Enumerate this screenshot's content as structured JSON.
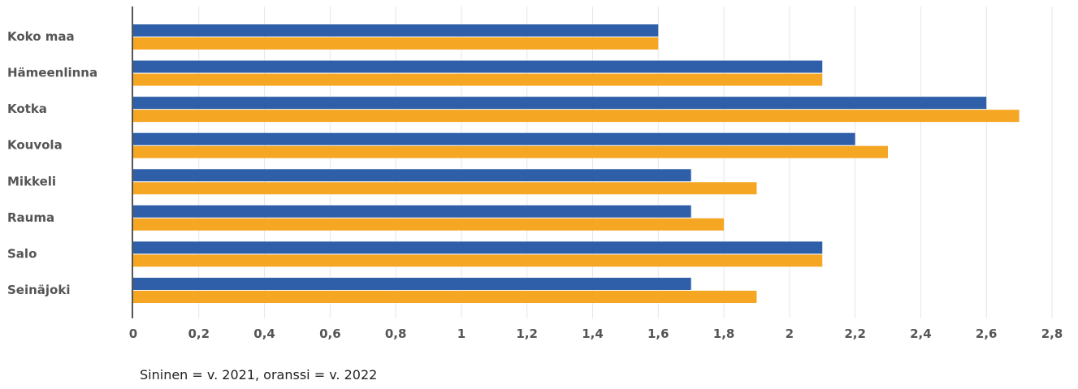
{
  "chart_data": {
    "type": "bar",
    "orientation": "horizontal",
    "categories": [
      "Koko maa",
      "Hämeenlinna",
      "Kotka",
      "Kouvola",
      "Mikkeli",
      "Rauma",
      "Salo",
      "Seinäjoki"
    ],
    "series": [
      {
        "values": [
          1.6,
          2.1,
          2.6,
          2.2,
          1.7,
          1.7,
          2.1,
          1.7
        ],
        "color": "#2e5fa8"
      },
      {
        "values": [
          1.6,
          2.1,
          2.7,
          2.3,
          1.9,
          1.8,
          2.1,
          1.9
        ],
        "color": "#f5a623"
      }
    ],
    "xlim": [
      0,
      2.8
    ],
    "xticks": [
      0,
      0.2,
      0.4,
      0.6,
      0.8,
      1,
      1.2,
      1.4,
      1.6,
      1.8,
      2,
      2.2,
      2.4,
      2.6,
      2.8
    ],
    "xtick_labels": [
      "0",
      "0,2",
      "0,4",
      "0,6",
      "0,8",
      "1",
      "1,2",
      "1,4",
      "1,6",
      "1,8",
      "2",
      "2,2",
      "2,4",
      "2,6",
      "2,8"
    ],
    "grid": "vertical",
    "caption": "Sininen = v. 2021, oranssi = v. 2022"
  }
}
